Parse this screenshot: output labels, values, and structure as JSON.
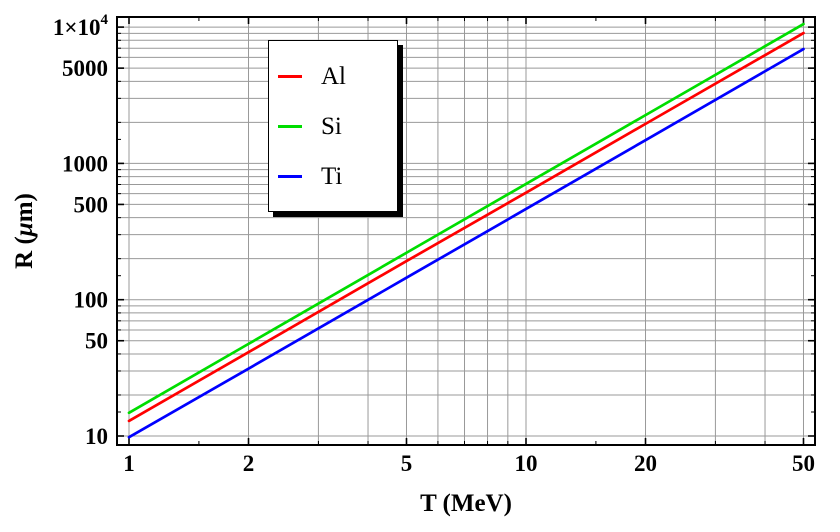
{
  "chart_data": {
    "type": "line",
    "title": "",
    "xlabel": "T (MeV)",
    "ylabel": "R (μm)",
    "ylabel_parts": {
      "prefix": "R (",
      "mu": "μ",
      "suffix": "m)"
    },
    "x_scale": "log",
    "y_scale": "log",
    "x_range": [
      0.93,
      54
    ],
    "y_range": [
      8.6,
      11800
    ],
    "grid": true,
    "grid_color": "#999999",
    "frame_color": "#000000",
    "x": [
      1,
      2,
      5,
      10,
      20,
      50
    ],
    "series": [
      {
        "name": "Al",
        "color": "#ff0000",
        "values": [
          12.9,
          41.2,
          192,
          610,
          1950,
          9040
        ]
      },
      {
        "name": "Si",
        "color": "#00dd00",
        "values": [
          14.8,
          47.4,
          221,
          707,
          2260,
          10530
        ]
      },
      {
        "name": "Ti",
        "color": "#0000ff",
        "values": [
          9.8,
          31.2,
          145,
          463,
          1480,
          6900
        ]
      }
    ],
    "x_ticks": [
      {
        "v": 1,
        "label": "1"
      },
      {
        "v": 2,
        "label": "2"
      },
      {
        "v": 5,
        "label": "5"
      },
      {
        "v": 10,
        "label": "10"
      },
      {
        "v": 20,
        "label": "20"
      },
      {
        "v": 50,
        "label": "50"
      }
    ],
    "y_ticks": [
      {
        "v": 10000,
        "label": "1×10",
        "sup": "4"
      },
      {
        "v": 5000,
        "label": "5000"
      },
      {
        "v": 1000,
        "label": "1000"
      },
      {
        "v": 500,
        "label": "500"
      },
      {
        "v": 100,
        "label": "100"
      },
      {
        "v": 50,
        "label": "50"
      },
      {
        "v": 10,
        "label": "10"
      }
    ],
    "x_grid": [
      1,
      2,
      3,
      4,
      5,
      6,
      7,
      8,
      9,
      10,
      20,
      30,
      40,
      50
    ],
    "y_grid": [
      10,
      20,
      30,
      40,
      50,
      60,
      70,
      80,
      90,
      100,
      200,
      300,
      400,
      500,
      600,
      700,
      800,
      900,
      1000,
      2000,
      3000,
      4000,
      5000,
      6000,
      7000,
      8000,
      9000,
      10000
    ],
    "x_minor_extra": [
      1.5,
      15
    ],
    "y_minor_extra": [
      15,
      150,
      1500
    ],
    "legend": {
      "position": "top-center",
      "items": [
        {
          "label": "Al",
          "color": "#ff0000"
        },
        {
          "label": "Si",
          "color": "#00dd00"
        },
        {
          "label": "Ti",
          "color": "#0000ff"
        }
      ]
    }
  }
}
